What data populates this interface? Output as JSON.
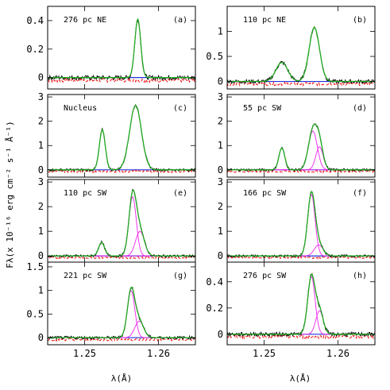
{
  "chart_data": {
    "type": "line",
    "xlabel": "λ(Å)",
    "ylabel": "Fλ(x 10⁻¹⁶ erg cm⁻² s⁻¹ Å⁻¹)",
    "xlim": [
      1.245,
      1.265
    ],
    "x_ticks": [
      "1.25",
      "1.26"
    ],
    "x_tick_values": [
      1.25,
      1.26
    ],
    "colors": {
      "data": "#000000",
      "total_fit": "#22aa22",
      "components": "#ee22ee",
      "continuum": "#2233dd",
      "residual": "#ee1111"
    },
    "panels": [
      {
        "label": "276 pc NE",
        "tag": "(a)",
        "ylim": [
          -0.08,
          0.5
        ],
        "yticks": [
          0,
          0.2,
          0.4
        ],
        "ytick_labels": [
          "0",
          "0.2",
          "0.4"
        ],
        "noise": 0.012,
        "lines": [
          {
            "center": 1.2572,
            "amp": 0.41,
            "sigma": 0.0004
          }
        ],
        "components": false
      },
      {
        "label": "110 pc NE",
        "tag": "(b)",
        "ylim": [
          -0.15,
          1.5
        ],
        "yticks": [
          0,
          0.5,
          1
        ],
        "ytick_labels": [
          "0",
          "0.5",
          "1"
        ],
        "noise": 0.03,
        "lines": [
          {
            "center": 1.2524,
            "amp": 0.38,
            "sigma": 0.0008
          },
          {
            "center": 1.2568,
            "amp": 1.08,
            "sigma": 0.0007
          }
        ],
        "components": false
      },
      {
        "label": "Nucleus",
        "tag": "(c)",
        "ylim": [
          -0.3,
          3.1
        ],
        "yticks": [
          0,
          1,
          2,
          3
        ],
        "ytick_labels": [
          "0",
          "1",
          "2",
          "3"
        ],
        "noise": 0.04,
        "lines": [
          {
            "center": 1.2524,
            "amp": 1.65,
            "sigma": 0.0004
          },
          {
            "center": 1.2569,
            "amp": 2.65,
            "sigma": 0.0008
          }
        ],
        "components": false
      },
      {
        "label": "55 pc SW",
        "tag": "(d)",
        "ylim": [
          -0.3,
          3.1
        ],
        "yticks": [
          0,
          1,
          2,
          3
        ],
        "ytick_labels": [
          "0",
          "1",
          "2",
          "3"
        ],
        "noise": 0.04,
        "lines": [
          {
            "center": 1.2524,
            "amp": 0.9,
            "sigma": 0.0004
          },
          {
            "center": 1.2566,
            "amp": 1.6,
            "sigma": 0.0006
          },
          {
            "center": 1.2575,
            "amp": 0.95,
            "sigma": 0.0005
          }
        ],
        "components": true
      },
      {
        "label": "110 pc SW",
        "tag": "(e)",
        "ylim": [
          -0.25,
          3.1
        ],
        "yticks": [
          0,
          1,
          2,
          3
        ],
        "ytick_labels": [
          "0",
          "1",
          "2",
          "3"
        ],
        "noise": 0.04,
        "lines": [
          {
            "center": 1.2523,
            "amp": 0.55,
            "sigma": 0.0004
          },
          {
            "center": 1.2565,
            "amp": 2.4,
            "sigma": 0.0005
          },
          {
            "center": 1.2575,
            "amp": 1.0,
            "sigma": 0.0006
          }
        ],
        "components": true
      },
      {
        "label": "166 pc SW",
        "tag": "(f)",
        "ylim": [
          -0.25,
          3.1
        ],
        "yticks": [
          0,
          1,
          2,
          3
        ],
        "ytick_labels": [
          "0",
          "1",
          "2",
          "3"
        ],
        "noise": 0.04,
        "lines": [
          {
            "center": 1.2564,
            "amp": 2.5,
            "sigma": 0.0005
          },
          {
            "center": 1.2574,
            "amp": 0.45,
            "sigma": 0.0006
          }
        ],
        "components": true
      },
      {
        "label": "221 pc SW",
        "tag": "(g)",
        "ylim": [
          -0.15,
          1.6
        ],
        "yticks": [
          0,
          0.5,
          1,
          1.5
        ],
        "ytick_labels": [
          "0",
          "0.5",
          "1",
          "1.5"
        ],
        "noise": 0.025,
        "lines": [
          {
            "center": 1.2563,
            "amp": 1.0,
            "sigma": 0.0005
          },
          {
            "center": 1.2574,
            "amp": 0.35,
            "sigma": 0.0006
          }
        ],
        "components": true
      },
      {
        "label": "276 pc SW",
        "tag": "(h)",
        "ylim": [
          -0.08,
          0.55
        ],
        "yticks": [
          0,
          0.2,
          0.4
        ],
        "ytick_labels": [
          "0",
          "0.2",
          "0.4"
        ],
        "noise": 0.012,
        "lines": [
          {
            "center": 1.2564,
            "amp": 0.44,
            "sigma": 0.0005
          },
          {
            "center": 1.2575,
            "amp": 0.18,
            "sigma": 0.0005
          }
        ],
        "components": true
      }
    ]
  }
}
